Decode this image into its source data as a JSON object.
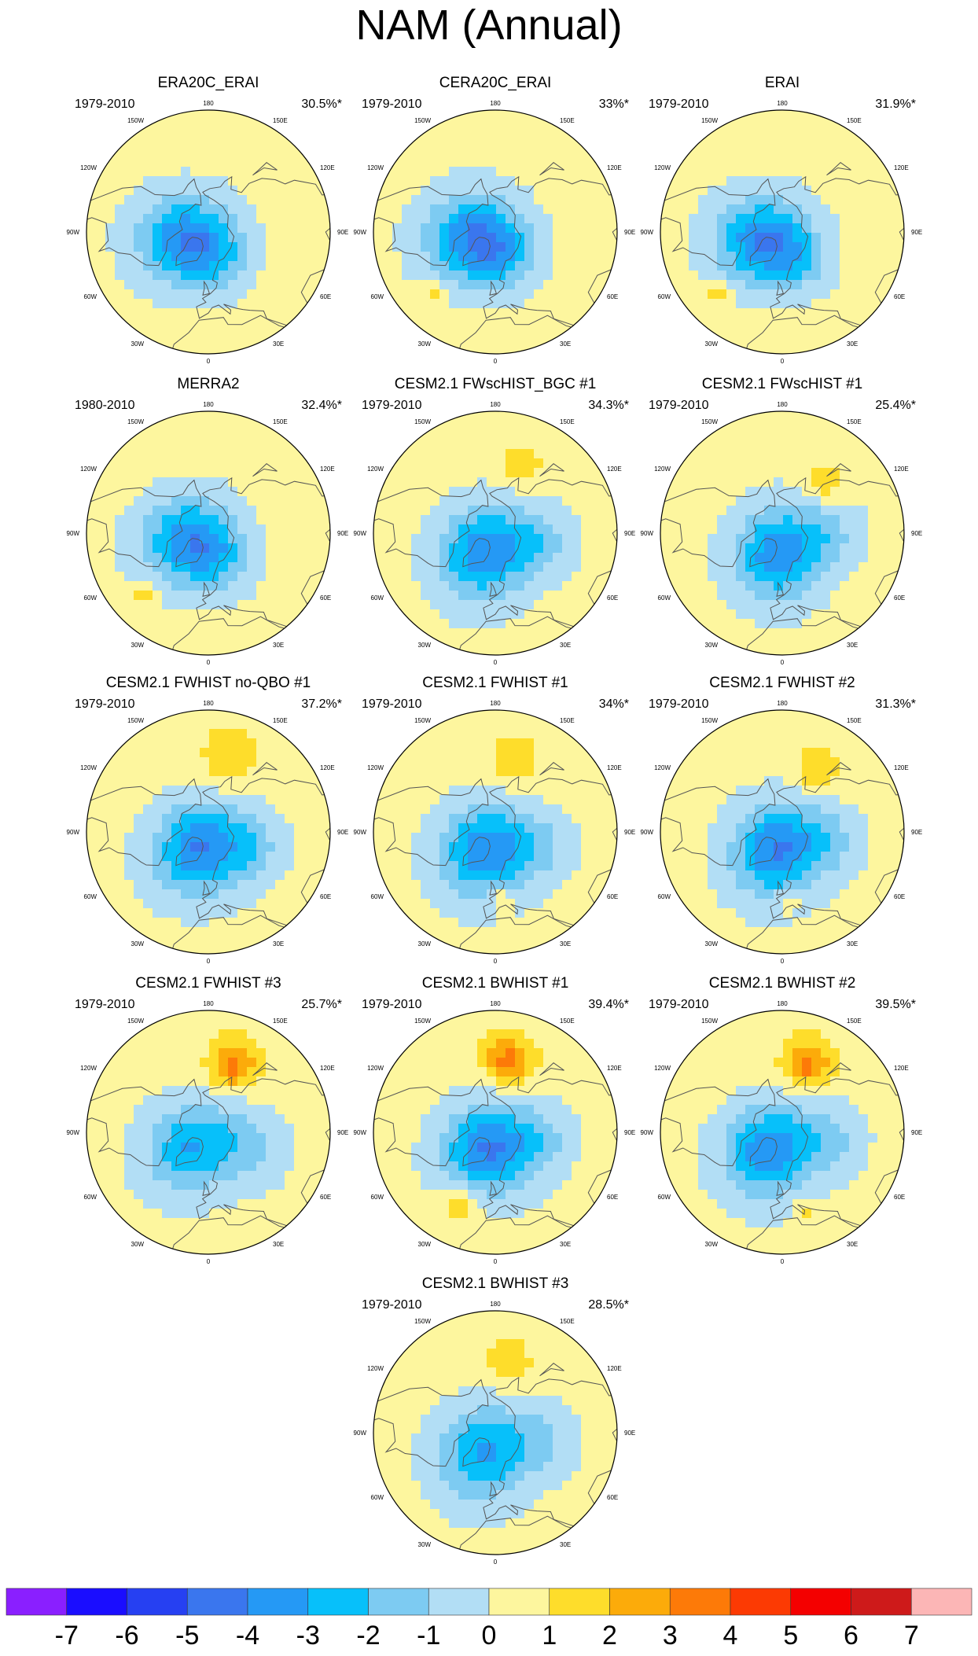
{
  "title": "NAM (Annual)",
  "panels": [
    {
      "name": "ERA20C_ERAI",
      "years": "1979-2010",
      "pct": "30.5%*",
      "features": [
        {
          "type": "trough",
          "lat": 70,
          "lon": -75,
          "strength": 3.4,
          "r": 26
        },
        {
          "type": "trough",
          "lat": 72,
          "lon": 15,
          "strength": 1.8,
          "r": 20
        }
      ]
    },
    {
      "name": "CERA20C_ERAI",
      "years": "1979-2010",
      "pct": "33%*",
      "features": [
        {
          "type": "trough",
          "lat": 72,
          "lon": -75,
          "strength": 3.6,
          "r": 27
        },
        {
          "type": "trough",
          "lat": 72,
          "lon": 20,
          "strength": 1.8,
          "r": 20
        },
        {
          "type": "ridge",
          "lat": 36,
          "lon": -45,
          "strength": 1.4,
          "r": 7
        }
      ]
    },
    {
      "name": "ERAI",
      "years": "1979-2010",
      "pct": "31.9%*",
      "features": [
        {
          "type": "trough",
          "lat": 72,
          "lon": -70,
          "strength": 3.4,
          "r": 26
        },
        {
          "type": "trough",
          "lat": 70,
          "lon": 25,
          "strength": 1.8,
          "r": 20
        },
        {
          "type": "ridge",
          "lat": 36,
          "lon": -45,
          "strength": 1.4,
          "r": 7
        }
      ]
    },
    {
      "name": "MERRA2",
      "years": "1980-2010",
      "pct": "32.4%*",
      "features": [
        {
          "type": "trough",
          "lat": 72,
          "lon": -70,
          "strength": 3.3,
          "r": 26
        },
        {
          "type": "trough",
          "lat": 70,
          "lon": 25,
          "strength": 1.6,
          "r": 20
        },
        {
          "type": "ridge",
          "lat": 36,
          "lon": -45,
          "strength": 1.4,
          "r": 7
        }
      ]
    },
    {
      "name": "CESM2.1 FWscHIST_BGC #1",
      "years": "1979-2010",
      "pct": "34.3%*",
      "features": [
        {
          "type": "trough",
          "lat": 72,
          "lon": -30,
          "strength": 3.4,
          "r": 27
        },
        {
          "type": "trough",
          "lat": 62,
          "lon": 80,
          "strength": 1.6,
          "r": 20
        },
        {
          "type": "ridge",
          "lat": 45,
          "lon": 160,
          "strength": 1.6,
          "r": 12
        }
      ]
    },
    {
      "name": "CESM2.1 FWscHIST #1",
      "years": "1979-2010",
      "pct": "25.4%*",
      "features": [
        {
          "type": "trough",
          "lat": 72,
          "lon": -15,
          "strength": 3.2,
          "r": 26
        },
        {
          "type": "trough",
          "lat": 62,
          "lon": 90,
          "strength": 1.5,
          "r": 20
        },
        {
          "type": "ridge",
          "lat": 48,
          "lon": 140,
          "strength": 1.6,
          "r": 11
        }
      ]
    },
    {
      "name": "CESM2.1 FWHIST no-QBO #1",
      "years": "1979-2010",
      "pct": "37.2%*",
      "features": [
        {
          "type": "trough",
          "lat": 74,
          "lon": -30,
          "strength": 3.5,
          "r": 27
        },
        {
          "type": "trough",
          "lat": 62,
          "lon": 70,
          "strength": 1.6,
          "r": 20
        },
        {
          "type": "ridge",
          "lat": 42,
          "lon": 165,
          "strength": 1.8,
          "r": 15
        }
      ]
    },
    {
      "name": "CESM2.1 FWHIST #1",
      "years": "1979-2010",
      "pct": "34%*",
      "features": [
        {
          "type": "trough",
          "lat": 72,
          "lon": -30,
          "strength": 3.3,
          "r": 27
        },
        {
          "type": "trough",
          "lat": 62,
          "lon": 70,
          "strength": 1.5,
          "r": 20
        },
        {
          "type": "ridge",
          "lat": 45,
          "lon": 165,
          "strength": 1.7,
          "r": 14
        },
        {
          "type": "ridge",
          "lat": 48,
          "lon": 5,
          "strength": 1.4,
          "r": 7
        }
      ]
    },
    {
      "name": "CESM2.1 FWHIST #2",
      "years": "1979-2010",
      "pct": "31.3%*",
      "features": [
        {
          "type": "trough",
          "lat": 74,
          "lon": -20,
          "strength": 3.5,
          "r": 27
        },
        {
          "type": "trough",
          "lat": 62,
          "lon": 80,
          "strength": 1.6,
          "r": 20
        },
        {
          "type": "ridge",
          "lat": 45,
          "lon": 150,
          "strength": 1.7,
          "r": 13
        },
        {
          "type": "ridge",
          "lat": 47,
          "lon": 5,
          "strength": 1.3,
          "r": 6
        }
      ]
    },
    {
      "name": "CESM2.1 FWHIST #3",
      "years": "1979-2010",
      "pct": "25.7%*",
      "features": [
        {
          "type": "trough",
          "lat": 70,
          "lon": -50,
          "strength": 2.6,
          "r": 26
        },
        {
          "type": "trough",
          "lat": 62,
          "lon": 70,
          "strength": 1.5,
          "r": 22
        },
        {
          "type": "ridge",
          "lat": 45,
          "lon": 160,
          "strength": 3.1,
          "r": 14
        }
      ]
    },
    {
      "name": "CESM2.1 BWHIST #1",
      "years": "1979-2010",
      "pct": "39.4%*",
      "features": [
        {
          "type": "trough",
          "lat": 74,
          "lon": -25,
          "strength": 3.6,
          "r": 27
        },
        {
          "type": "trough",
          "lat": 62,
          "lon": 80,
          "strength": 1.5,
          "r": 20
        },
        {
          "type": "ridge",
          "lat": 45,
          "lon": 170,
          "strength": 3.2,
          "r": 14
        },
        {
          "type": "ridge",
          "lat": 40,
          "lon": -25,
          "strength": 1.7,
          "r": 12
        }
      ]
    },
    {
      "name": "CESM2.1 BWHIST #2",
      "years": "1979-2010",
      "pct": "39.5%*",
      "features": [
        {
          "type": "trough",
          "lat": 72,
          "lon": -35,
          "strength": 3.4,
          "r": 27
        },
        {
          "type": "trough",
          "lat": 60,
          "lon": 80,
          "strength": 1.5,
          "r": 20
        },
        {
          "type": "ridge",
          "lat": 45,
          "lon": 160,
          "strength": 3.1,
          "r": 14
        },
        {
          "type": "ridge",
          "lat": 40,
          "lon": 15,
          "strength": 1.4,
          "r": 6
        }
      ]
    },
    {
      "name": "CESM2.1 BWHIST #3",
      "years": "1979-2010",
      "pct": "28.5%*",
      "features": [
        {
          "type": "trough",
          "lat": 70,
          "lon": -30,
          "strength": 2.8,
          "r": 27
        },
        {
          "type": "trough",
          "lat": 60,
          "lon": 80,
          "strength": 1.4,
          "r": 20
        },
        {
          "type": "ridge",
          "lat": 45,
          "lon": 170,
          "strength": 1.7,
          "r": 13
        }
      ]
    }
  ],
  "map_labels": {
    "top": "180",
    "bottom": "0",
    "left": "90W",
    "right": "90E",
    "upper_left_outer": "120W",
    "upper_left_inner": "150W",
    "upper_right_inner": "150E",
    "upper_right_outer": "120E",
    "lower_left_outer": "60W",
    "lower_left_inner": "30W",
    "lower_right_inner": "30E",
    "lower_right_outer": "60E"
  },
  "colorbar": {
    "labels": [
      "-7",
      "-6",
      "-5",
      "-4",
      "-3",
      "-2",
      "-1",
      "0",
      "1",
      "2",
      "3",
      "4",
      "5",
      "6",
      "7"
    ],
    "levels": [
      -7,
      -6,
      -5,
      -4,
      -3,
      -2,
      -1,
      0,
      1,
      2,
      3,
      4,
      5,
      6,
      7
    ],
    "colors": [
      "#8a1fff",
      "#1a0dff",
      "#2640f2",
      "#3a76ee",
      "#2599f5",
      "#07c0fa",
      "#7dcbf2",
      "#b2def5",
      "#fdf69e",
      "#fedd2b",
      "#fcab0a",
      "#fd7a08",
      "#fc3a03",
      "#f40000",
      "#ce1a1a",
      "#fcb6b6"
    ]
  },
  "chart_data": {
    "type": "heatmap",
    "title": "NAM (Annual)",
    "projection": "north polar stereographic",
    "color_levels": [
      -7,
      -6,
      -5,
      -4,
      -3,
      -2,
      -1,
      0,
      1,
      2,
      3,
      4,
      5,
      6,
      7
    ],
    "longitude_labels": [
      "180",
      "150W",
      "120W",
      "90W",
      "60W",
      "30W",
      "0",
      "30E",
      "60E",
      "90E",
      "120E",
      "150E"
    ],
    "panels": [
      {
        "name": "ERA20C_ERAI",
        "period": "1979-2010",
        "variance_explained_pct": 30.5
      },
      {
        "name": "CERA20C_ERAI",
        "period": "1979-2010",
        "variance_explained_pct": 33.0
      },
      {
        "name": "ERAI",
        "period": "1979-2010",
        "variance_explained_pct": 31.9
      },
      {
        "name": "MERRA2",
        "period": "1980-2010",
        "variance_explained_pct": 32.4
      },
      {
        "name": "CESM2.1 FWscHIST_BGC #1",
        "period": "1979-2010",
        "variance_explained_pct": 34.3
      },
      {
        "name": "CESM2.1 FWscHIST #1",
        "period": "1979-2010",
        "variance_explained_pct": 25.4
      },
      {
        "name": "CESM2.1 FWHIST no-QBO #1",
        "period": "1979-2010",
        "variance_explained_pct": 37.2
      },
      {
        "name": "CESM2.1 FWHIST #1",
        "period": "1979-2010",
        "variance_explained_pct": 34.0
      },
      {
        "name": "CESM2.1 FWHIST #2",
        "period": "1979-2010",
        "variance_explained_pct": 31.3
      },
      {
        "name": "CESM2.1 FWHIST #3",
        "period": "1979-2010",
        "variance_explained_pct": 25.7
      },
      {
        "name": "CESM2.1 BWHIST #1",
        "period": "1979-2010",
        "variance_explained_pct": 39.4
      },
      {
        "name": "CESM2.1 BWHIST #2",
        "period": "1979-2010",
        "variance_explained_pct": 39.5
      },
      {
        "name": "CESM2.1 BWHIST #3",
        "period": "1979-2010",
        "variance_explained_pct": 28.5
      }
    ]
  }
}
